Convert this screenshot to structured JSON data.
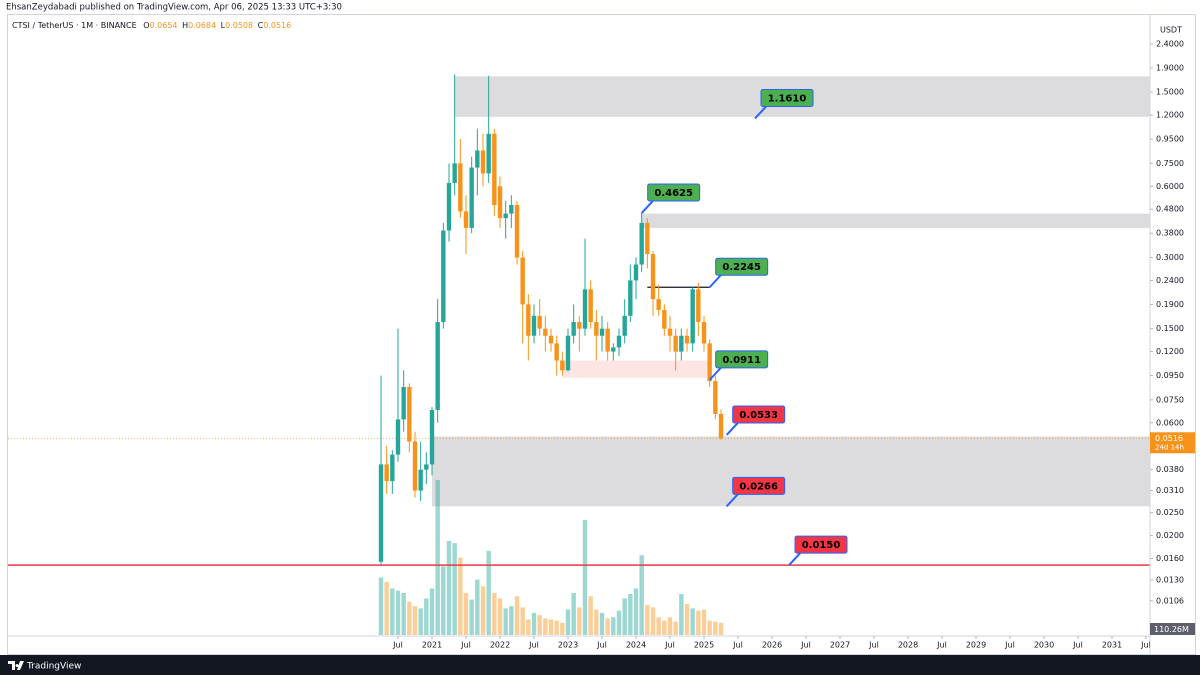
{
  "header": "EhsanZeydabadi published on TradingView.com, Apr 06, 2025 13:33 UTC+3:30",
  "footer": "TradingView",
  "chart_data": {
    "type": "candlestick",
    "symbol": "CTSI / TetherUS · 1M · BINANCE",
    "legend_keys": [
      "O",
      "H",
      "L",
      "C"
    ],
    "y_axis_label": "USDT",
    "log_scale": true,
    "grid": false,
    "up_color": "#26a69a",
    "down_color": "#f7931a",
    "x": [
      "2020-04",
      "2020-05",
      "2020-06",
      "2020-07",
      "2020-08",
      "2020-09",
      "2020-10",
      "2020-11",
      "2020-12",
      "2021-01",
      "2021-02",
      "2021-03",
      "2021-04",
      "2021-05",
      "2021-06",
      "2021-07",
      "2021-08",
      "2021-09",
      "2021-10",
      "2021-11",
      "2021-12",
      "2022-01",
      "2022-02",
      "2022-03",
      "2022-04",
      "2022-05",
      "2022-06",
      "2022-07",
      "2022-08",
      "2022-09",
      "2022-10",
      "2022-11",
      "2022-12",
      "2023-01",
      "2023-02",
      "2023-03",
      "2023-04",
      "2023-05",
      "2023-06",
      "2023-07",
      "2023-08",
      "2023-09",
      "2023-10",
      "2023-11",
      "2023-12",
      "2024-01",
      "2024-02",
      "2024-03",
      "2024-04",
      "2024-05",
      "2024-06",
      "2024-07",
      "2024-08",
      "2024-09",
      "2024-10",
      "2024-11",
      "2024-12",
      "2025-01",
      "2025-02",
      "2025-03",
      "2025-04"
    ],
    "open": [
      0.0155,
      0.04,
      0.034,
      0.044,
      0.062,
      0.085,
      0.05,
      0.031,
      0.038,
      0.04,
      0.068,
      0.16,
      0.39,
      0.62,
      0.75,
      0.47,
      0.4,
      0.72,
      0.85,
      0.68,
      1.0,
      0.6,
      0.44,
      0.46,
      0.5,
      0.3,
      0.19,
      0.14,
      0.17,
      0.15,
      0.14,
      0.13,
      0.11,
      0.1,
      0.14,
      0.16,
      0.15,
      0.22,
      0.16,
      0.14,
      0.15,
      0.12,
      0.125,
      0.14,
      0.17,
      0.24,
      0.28,
      0.42,
      0.31,
      0.2,
      0.18,
      0.15,
      0.14,
      0.12,
      0.14,
      0.13,
      0.22,
      0.16,
      0.13,
      0.09,
      0.0654
    ],
    "high": [
      0.095,
      0.048,
      0.046,
      0.15,
      0.1,
      0.088,
      0.055,
      0.05,
      0.045,
      0.07,
      0.2,
      0.42,
      0.75,
      1.78,
      0.95,
      0.55,
      0.8,
      1.05,
      1.0,
      1.76,
      1.05,
      0.66,
      0.52,
      0.55,
      0.52,
      0.32,
      0.21,
      0.19,
      0.2,
      0.17,
      0.15,
      0.14,
      0.12,
      0.15,
      0.19,
      0.17,
      0.36,
      0.24,
      0.18,
      0.17,
      0.16,
      0.13,
      0.15,
      0.2,
      0.28,
      0.3,
      0.4625,
      0.44,
      0.32,
      0.23,
      0.19,
      0.17,
      0.15,
      0.15,
      0.15,
      0.2245,
      0.235,
      0.17,
      0.135,
      0.095,
      0.0684
    ],
    "low": [
      0.015,
      0.03,
      0.03,
      0.041,
      0.055,
      0.045,
      0.029,
      0.028,
      0.033,
      0.036,
      0.06,
      0.15,
      0.35,
      0.55,
      0.44,
      0.31,
      0.38,
      0.55,
      0.6,
      0.62,
      0.45,
      0.4,
      0.36,
      0.4,
      0.28,
      0.13,
      0.11,
      0.13,
      0.14,
      0.12,
      0.12,
      0.095,
      0.095,
      0.099,
      0.13,
      0.12,
      0.14,
      0.15,
      0.11,
      0.12,
      0.11,
      0.11,
      0.115,
      0.13,
      0.16,
      0.2,
      0.26,
      0.27,
      0.17,
      0.17,
      0.14,
      0.12,
      0.1,
      0.11,
      0.12,
      0.12,
      0.14,
      0.12,
      0.085,
      0.062,
      0.0508
    ],
    "close": [
      0.04,
      0.034,
      0.044,
      0.062,
      0.085,
      0.05,
      0.031,
      0.038,
      0.04,
      0.068,
      0.16,
      0.39,
      0.62,
      0.75,
      0.47,
      0.4,
      0.72,
      0.85,
      0.68,
      1.0,
      0.5,
      0.44,
      0.46,
      0.5,
      0.3,
      0.19,
      0.14,
      0.17,
      0.15,
      0.14,
      0.13,
      0.11,
      0.1,
      0.14,
      0.16,
      0.15,
      0.22,
      0.16,
      0.14,
      0.15,
      0.12,
      0.125,
      0.14,
      0.17,
      0.24,
      0.28,
      0.42,
      0.31,
      0.2,
      0.18,
      0.15,
      0.14,
      0.12,
      0.14,
      0.13,
      0.22,
      0.16,
      0.13,
      0.09,
      0.0654,
      0.0516
    ],
    "volume": [
      520,
      480,
      420,
      400,
      380,
      300,
      260,
      240,
      330,
      420,
      1400,
      620,
      850,
      830,
      700,
      380,
      320,
      500,
      440,
      760,
      380,
      330,
      240,
      260,
      350,
      250,
      140,
      200,
      180,
      150,
      140,
      130,
      110,
      230,
      380,
      250,
      1040,
      350,
      230,
      200,
      150,
      160,
      220,
      330,
      370,
      420,
      720,
      270,
      250,
      160,
      130,
      160,
      120,
      370,
      280,
      240,
      220,
      230,
      130,
      120,
      110.26
    ],
    "volume_last_label": "110.26M",
    "countdown": "24d 14h",
    "ylim": [
      0.0076,
      2.97
    ],
    "yticks": [
      {
        "value": 2.4,
        "label": "2.4000"
      },
      {
        "value": 1.9,
        "label": "1.9000"
      },
      {
        "value": 1.5,
        "label": "1.5000"
      },
      {
        "value": 1.2,
        "label": "1.2000"
      },
      {
        "value": 0.95,
        "label": "0.9500"
      },
      {
        "value": 0.75,
        "label": "0.7500"
      },
      {
        "value": 0.6,
        "label": "0.6000"
      },
      {
        "value": 0.48,
        "label": "0.4800"
      },
      {
        "value": 0.38,
        "label": "0.3800"
      },
      {
        "value": 0.3,
        "label": "0.3000"
      },
      {
        "value": 0.24,
        "label": "0.2400"
      },
      {
        "value": 0.19,
        "label": "0.1900"
      },
      {
        "value": 0.15,
        "label": "0.1500"
      },
      {
        "value": 0.12,
        "label": "0.1200"
      },
      {
        "value": 0.095,
        "label": "0.0950"
      },
      {
        "value": 0.075,
        "label": "0.0750"
      },
      {
        "value": 0.06,
        "label": "0.0600"
      },
      {
        "value": 0.038,
        "label": "0.0380"
      },
      {
        "value": 0.031,
        "label": "0.0310"
      },
      {
        "value": 0.025,
        "label": "0.0250"
      },
      {
        "value": 0.02,
        "label": "0.0200"
      },
      {
        "value": 0.016,
        "label": "0.0160"
      },
      {
        "value": 0.013,
        "label": "0.0130"
      },
      0.0106
    ],
    "xticks": [
      {
        "value": "2020-07",
        "label": "Jul"
      },
      {
        "value": "2021-01",
        "label": "2021"
      },
      {
        "value": "2021-07",
        "label": "Jul"
      },
      {
        "value": "2022-01",
        "label": "2022"
      },
      {
        "value": "2022-07",
        "label": "Jul"
      },
      {
        "value": "2023-01",
        "label": "2023"
      },
      {
        "value": "2023-07",
        "label": "Jul"
      },
      {
        "value": "2024-01",
        "label": "2024"
      },
      {
        "value": "2024-07",
        "label": "Jul"
      },
      {
        "value": "2025-01",
        "label": "2025"
      },
      {
        "value": "2025-07",
        "label": "Jul"
      },
      {
        "value": "2026-01",
        "label": "2026"
      },
      {
        "value": "2026-07",
        "label": "Jul"
      },
      {
        "value": "2027-01",
        "label": "2027"
      },
      {
        "value": "2027-07",
        "label": "Jul"
      },
      {
        "value": "2028-01",
        "label": "2028"
      },
      {
        "value": "2028-07",
        "label": "Jul"
      },
      {
        "value": "2029-01",
        "label": "2029"
      },
      {
        "value": "2029-07",
        "label": "Jul"
      },
      {
        "value": "2030-01",
        "label": "2030"
      },
      {
        "value": "2030-07",
        "label": "Jul"
      },
      {
        "value": "2031-01",
        "label": "2031"
      },
      {
        "value": "2031-07",
        "label": "Jul"
      }
    ],
    "zones": [
      {
        "from": "2021-05",
        "range": [
          1.18,
          1.75
        ],
        "color": "#dcdcdf"
      },
      {
        "from": "2024-02",
        "range": [
          0.4,
          0.46
        ],
        "color": "#dcdcdf"
      },
      {
        "from": "2021-01",
        "range": [
          0.0266,
          0.0525
        ],
        "color": "#dcdcdf"
      },
      {
        "from": "2022-12",
        "to": "2025-02",
        "range": [
          0.093,
          0.11
        ],
        "color": "#fde5e3"
      }
    ],
    "annotations": [
      {
        "value": 1.161,
        "label": "1.1610",
        "x": "2025-10",
        "color": "#4caf50"
      },
      {
        "value": 0.4625,
        "label": "0.4625",
        "x": "2024-02",
        "color": "#4caf50"
      },
      {
        "value": 0.2245,
        "label": "0.2245",
        "x": "2025-02",
        "color": "#4caf50",
        "segment_from": "2024-03"
      },
      {
        "value": 0.0911,
        "label": "0.0911",
        "x": "2025-02",
        "color": "#4caf50"
      },
      {
        "value": 0.0533,
        "label": "0.0533",
        "x": "2025-05",
        "color": "#f23645"
      },
      {
        "value": 0.0266,
        "label": "0.0266",
        "x": "2025-05",
        "color": "#f23645"
      },
      {
        "value": 0.015,
        "label": "0.0150",
        "x": "2026-04",
        "color": "#f23645",
        "line": true
      }
    ]
  }
}
